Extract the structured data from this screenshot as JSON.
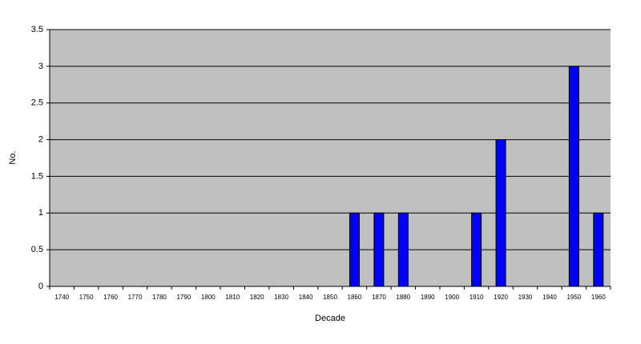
{
  "chart_data": {
    "type": "bar",
    "x_label": "Decade",
    "y_label": "No.",
    "categories": [
      "1740",
      "1750",
      "1760",
      "1770",
      "1780",
      "1790",
      "1800",
      "1810",
      "1820",
      "1830",
      "1840",
      "1850",
      "1860",
      "1870",
      "1880",
      "1890",
      "1900",
      "1910",
      "1920",
      "1930",
      "1940",
      "1950",
      "1960"
    ],
    "values": [
      0,
      0,
      0,
      0,
      0,
      0,
      0,
      0,
      0,
      0,
      0,
      0,
      1,
      1,
      1,
      0,
      0,
      1,
      2,
      0,
      0,
      3,
      1
    ],
    "color": "#0000ff",
    "ylim": [
      0,
      3.5
    ],
    "yticks": [
      0,
      0.5,
      1,
      1.5,
      2,
      2.5,
      3,
      3.5
    ],
    "grid": true
  }
}
